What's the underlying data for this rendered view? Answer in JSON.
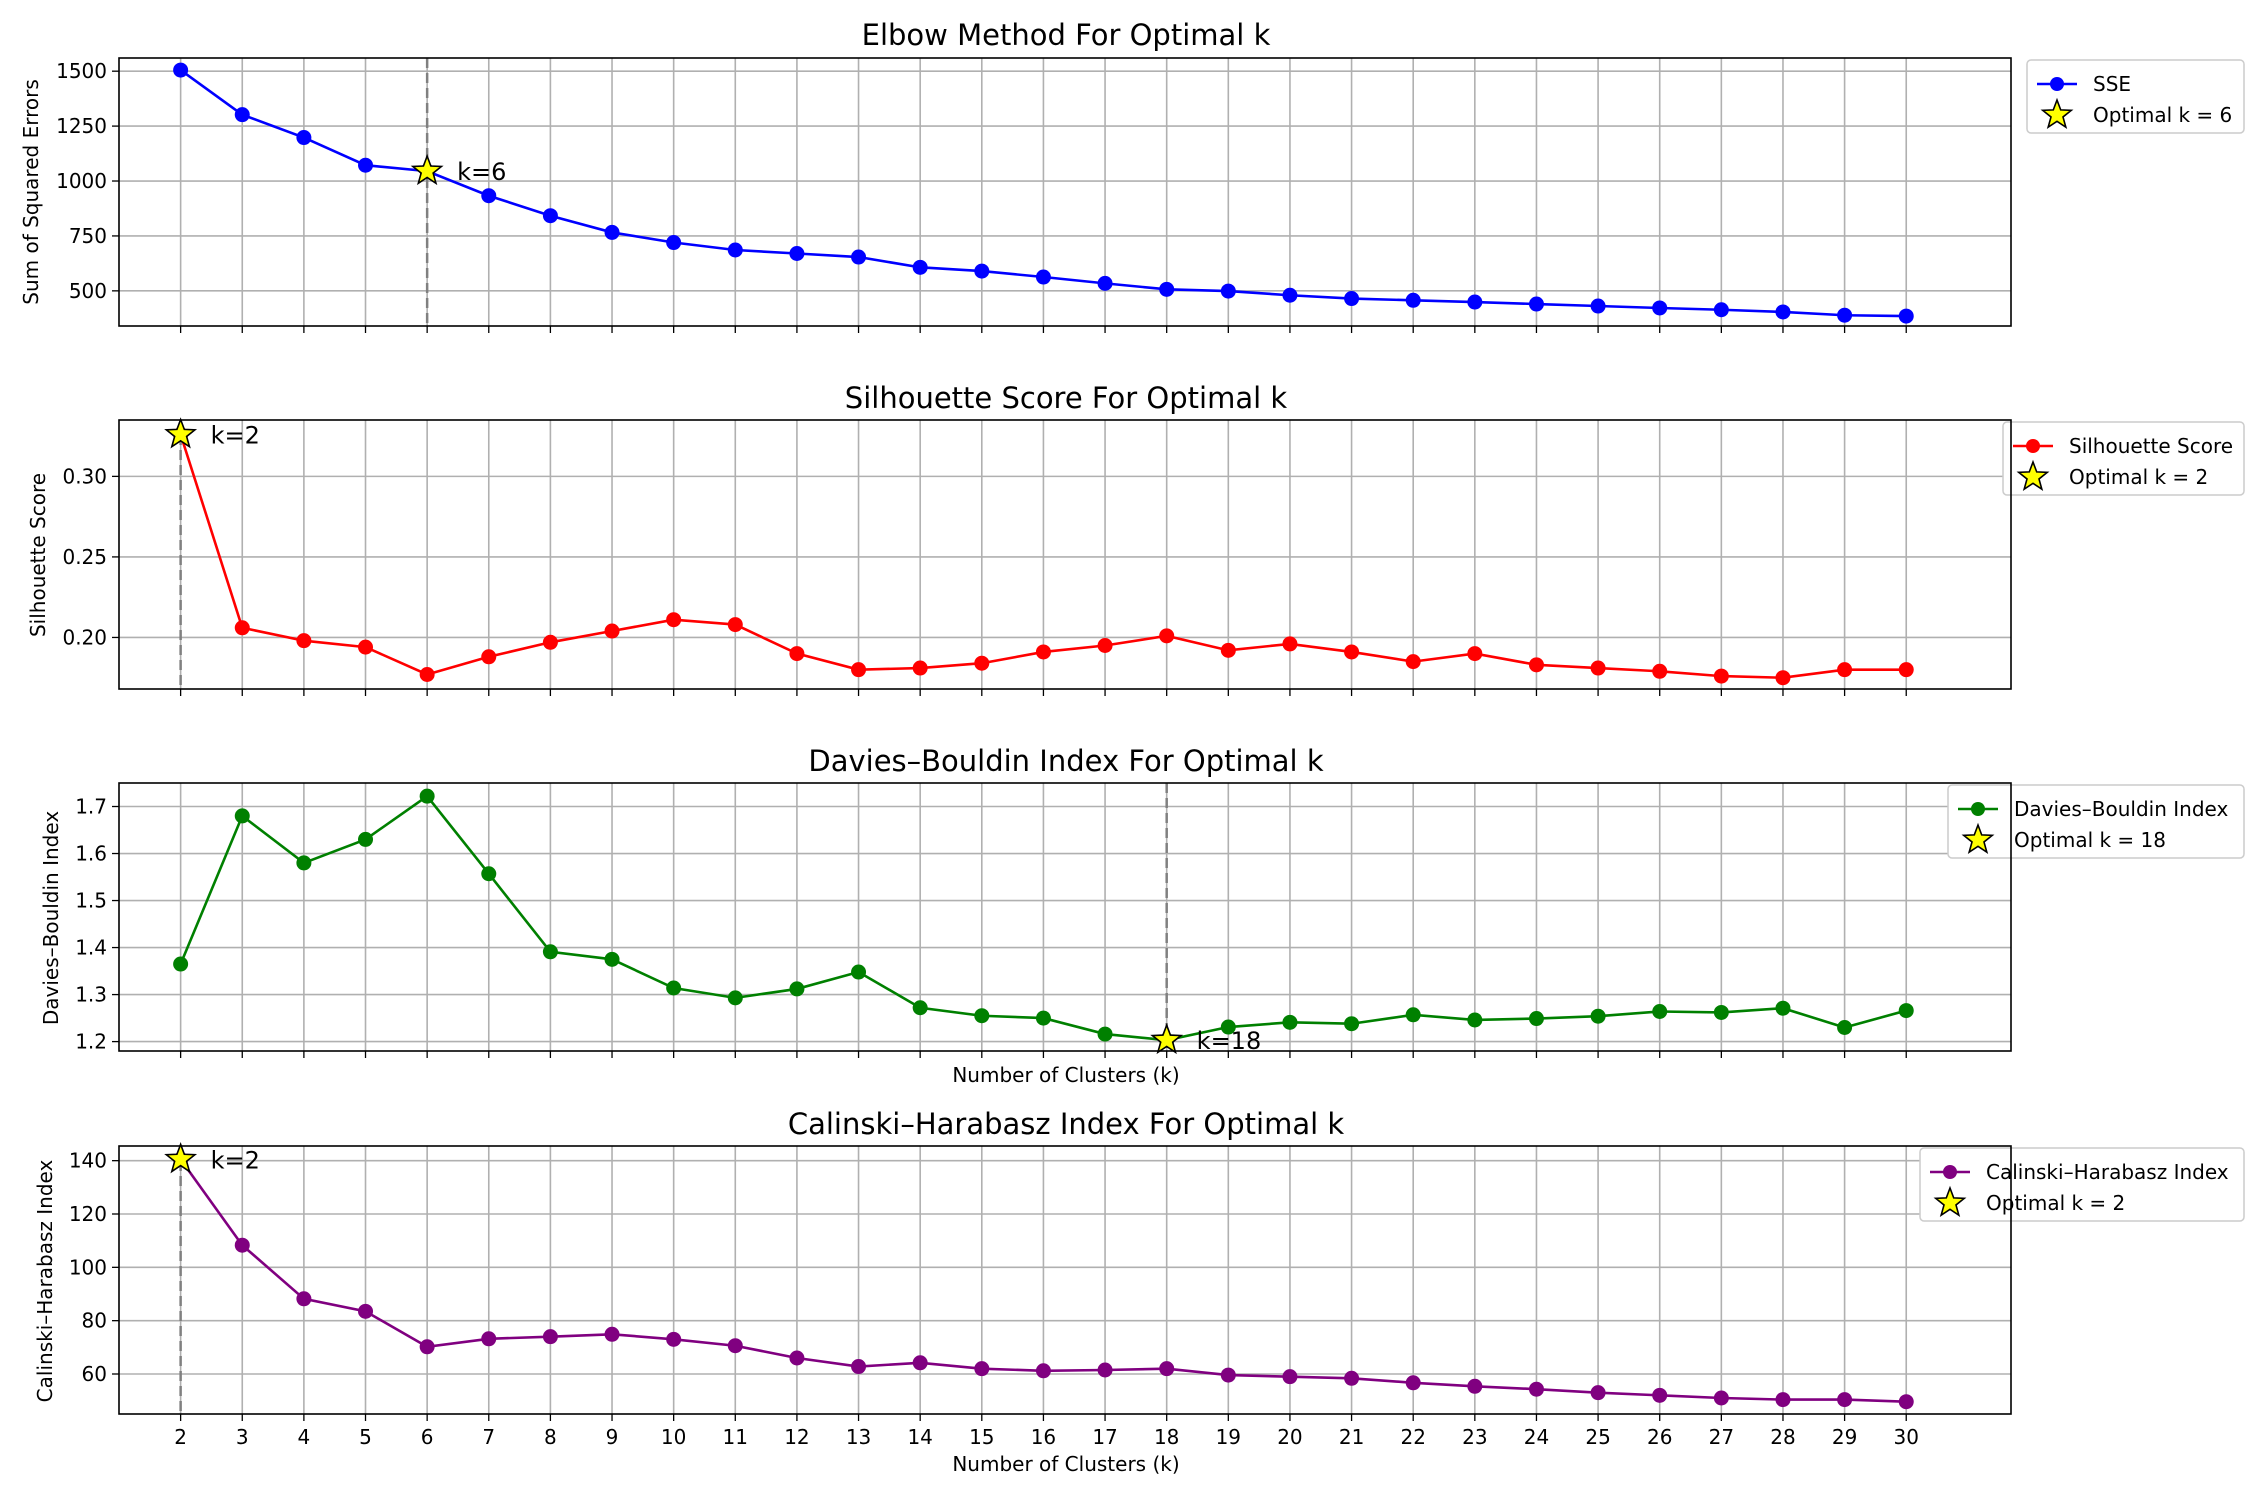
{
  "chart_data": [
    {
      "type": "line",
      "title": "Elbow Method For Optimal k",
      "xlabel": "",
      "ylabel": "Sum of Squared Errors",
      "x": [
        2,
        3,
        4,
        5,
        6,
        7,
        8,
        9,
        10,
        11,
        12,
        13,
        14,
        15,
        16,
        17,
        18,
        19,
        20,
        21,
        22,
        23,
        24,
        25,
        26,
        27,
        28,
        29,
        30
      ],
      "series": [
        {
          "name": "SSE",
          "color": "#0000ff",
          "values": [
            1505,
            1302,
            1198,
            1072,
            1045,
            933,
            842,
            766,
            720,
            686,
            670,
            654,
            607,
            590,
            563,
            534,
            507,
            499,
            480,
            465,
            457,
            449,
            440,
            431,
            422,
            414,
            404,
            389,
            385
          ]
        }
      ],
      "optimal": {
        "k": 6,
        "value": 1045,
        "label": "k=6",
        "legend": "Optimal k = 6"
      },
      "ylim": [
        340,
        1560
      ],
      "yticks": [
        500,
        750,
        1000,
        1250,
        1500
      ],
      "ytick_labels": [
        "500",
        "750",
        "1000",
        "1250",
        "1500"
      ],
      "grid": true,
      "legend_position": "outside-right"
    },
    {
      "type": "line",
      "title": "Silhouette Score For Optimal k",
      "xlabel": "",
      "ylabel": "Silhouette Score",
      "x": [
        2,
        3,
        4,
        5,
        6,
        7,
        8,
        9,
        10,
        11,
        12,
        13,
        14,
        15,
        16,
        17,
        18,
        19,
        20,
        21,
        22,
        23,
        24,
        25,
        26,
        27,
        28,
        29,
        30
      ],
      "series": [
        {
          "name": "Silhouette Score",
          "color": "#ff0000",
          "values": [
            0.326,
            0.206,
            0.198,
            0.194,
            0.177,
            0.188,
            0.197,
            0.204,
            0.211,
            0.208,
            0.19,
            0.18,
            0.181,
            0.184,
            0.191,
            0.195,
            0.201,
            0.192,
            0.196,
            0.191,
            0.185,
            0.19,
            0.183,
            0.181,
            0.179,
            0.176,
            0.175,
            0.18,
            0.18
          ]
        }
      ],
      "optimal": {
        "k": 2,
        "value": 0.326,
        "label": "k=2",
        "legend": "Optimal k = 2"
      },
      "ylim": [
        0.168,
        0.335
      ],
      "yticks": [
        0.2,
        0.25,
        0.3
      ],
      "ytick_labels": [
        "0.20",
        "0.25",
        "0.30"
      ],
      "grid": true,
      "legend_position": "outside-right"
    },
    {
      "type": "line",
      "title": "Davies–Bouldin Index For Optimal k",
      "xlabel": "Number of Clusters (k)",
      "ylabel": "Davies–Bouldin Index",
      "x": [
        2,
        3,
        4,
        5,
        6,
        7,
        8,
        9,
        10,
        11,
        12,
        13,
        14,
        15,
        16,
        17,
        18,
        19,
        20,
        21,
        22,
        23,
        24,
        25,
        26,
        27,
        28,
        29,
        30
      ],
      "series": [
        {
          "name": "Davies–Bouldin Index",
          "color": "#008000",
          "values": [
            1.365,
            1.68,
            1.58,
            1.63,
            1.722,
            1.557,
            1.391,
            1.375,
            1.314,
            1.293,
            1.312,
            1.348,
            1.272,
            1.255,
            1.25,
            1.216,
            1.203,
            1.231,
            1.241,
            1.238,
            1.257,
            1.246,
            1.249,
            1.254,
            1.264,
            1.262,
            1.271,
            1.23,
            1.266
          ]
        }
      ],
      "optimal": {
        "k": 18,
        "value": 1.203,
        "label": "k=18",
        "legend": "Optimal k = 18"
      },
      "ylim": [
        1.18,
        1.75
      ],
      "yticks": [
        1.2,
        1.3,
        1.4,
        1.5,
        1.6,
        1.7
      ],
      "ytick_labels": [
        "1.2",
        "1.3",
        "1.4",
        "1.5",
        "1.6",
        "1.7"
      ],
      "grid": true,
      "legend_position": "outside-right"
    },
    {
      "type": "line",
      "title": "Calinski–Harabasz Index For Optimal k",
      "xlabel": "Number of Clusters (k)",
      "ylabel": "Calinski–Harabasz Index",
      "x": [
        2,
        3,
        4,
        5,
        6,
        7,
        8,
        9,
        10,
        11,
        12,
        13,
        14,
        15,
        16,
        17,
        18,
        19,
        20,
        21,
        22,
        23,
        24,
        25,
        26,
        27,
        28,
        29,
        30
      ],
      "series": [
        {
          "name": "Calinski–Harabasz Index",
          "color": "#800080",
          "values": [
            140.5,
            108.3,
            88.2,
            83.5,
            70.2,
            73.2,
            74.0,
            74.9,
            73.0,
            70.6,
            66.0,
            62.8,
            64.2,
            62.0,
            61.2,
            61.5,
            62.0,
            59.6,
            59.0,
            58.4,
            56.7,
            55.4,
            54.3,
            53.0,
            52.0,
            51.0,
            50.4,
            50.4,
            49.6
          ]
        }
      ],
      "optimal": {
        "k": 2,
        "value": 140.5,
        "label": "k=2",
        "legend": "Optimal k = 2"
      },
      "ylim": [
        45,
        145.5
      ],
      "yticks": [
        60,
        80,
        100,
        120,
        140
      ],
      "ytick_labels": [
        "60",
        "80",
        "100",
        "120",
        "140"
      ],
      "grid": true,
      "legend_position": "outside-right"
    }
  ],
  "colors": {
    "grid": "#b0b0b0",
    "vline": "#808080",
    "star_fill": "#ffff00",
    "star_edge": "#000000"
  }
}
